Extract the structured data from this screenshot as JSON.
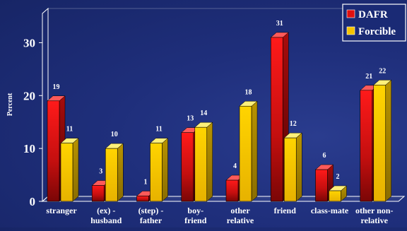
{
  "chart_data": {
    "type": "bar",
    "title": "",
    "xlabel": "",
    "ylabel": "Percent",
    "ylim": [
      0,
      35
    ],
    "yticks": [
      0,
      10,
      20,
      30
    ],
    "categories": [
      [
        "stranger"
      ],
      [
        "(ex) -",
        "husband"
      ],
      [
        "(step) -",
        "father"
      ],
      [
        "boy-",
        "friend"
      ],
      [
        "other",
        "relative"
      ],
      [
        "friend"
      ],
      [
        "class-mate"
      ],
      [
        "other non-",
        "relative"
      ]
    ],
    "series": [
      {
        "name": "DAFR",
        "color": "#e01010",
        "values": [
          19,
          3,
          1,
          13,
          4,
          31,
          6,
          21
        ]
      },
      {
        "name": "Forcible",
        "color": "#f5c400",
        "values": [
          11,
          10,
          11,
          14,
          18,
          12,
          2,
          22
        ]
      }
    ],
    "legend_position": "top-right",
    "grid": false,
    "style": "3d-bars"
  }
}
